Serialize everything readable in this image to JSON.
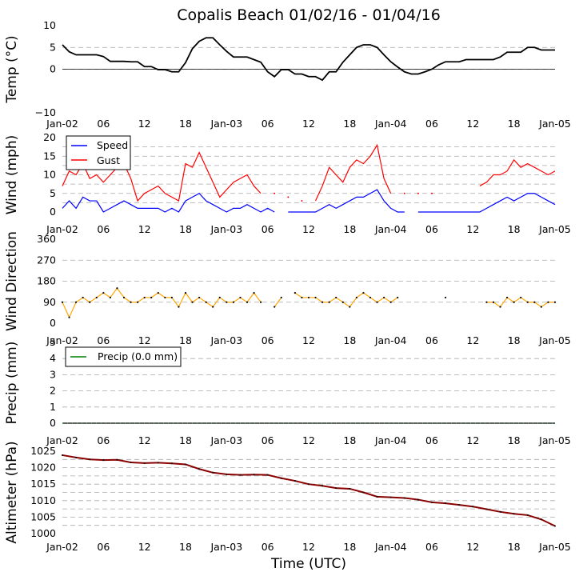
{
  "title": "Copalis Beach 01/02/16 - 01/04/16",
  "xlabel": "Time (UTC)",
  "x_tick_labels": [
    "Jan-02",
    "06",
    "12",
    "18",
    "Jan-03",
    "06",
    "12",
    "18",
    "Jan-04",
    "06",
    "12",
    "18",
    "Jan-05"
  ],
  "colors": {
    "temp": "#000000",
    "speed": "#0000ff",
    "gust": "#ff0000",
    "direction": "#ffa500",
    "precip": "#008000",
    "altimeter": "#8b0000"
  },
  "chart_data": [
    {
      "type": "line",
      "ylabel": "Temp (°C)",
      "ylim": [
        -10,
        10
      ],
      "yticks": [
        "10",
        "5",
        "0",
        "−10"
      ],
      "zero_line": true,
      "grid": "horizontal dashed",
      "x_hours": [
        0,
        1,
        2,
        3,
        4,
        5,
        6,
        7,
        8,
        9,
        10,
        11,
        12,
        13,
        14,
        15,
        16,
        17,
        18,
        19,
        20,
        21,
        22,
        23,
        24,
        25,
        26,
        27,
        28,
        29,
        30,
        31,
        32,
        33,
        34,
        35,
        36,
        37,
        38,
        39,
        40,
        41,
        42,
        43,
        44,
        45,
        46,
        47,
        48,
        49,
        50,
        51,
        52,
        53,
        54,
        55,
        56,
        57,
        58,
        59,
        60,
        61,
        62,
        63,
        64,
        65,
        66,
        67,
        68,
        69,
        70,
        71,
        72
      ],
      "series": [
        {
          "values": [
            5.6,
            4,
            3.3,
            3.3,
            3.3,
            3.3,
            2.9,
            1.8,
            1.8,
            1.8,
            1.7,
            1.7,
            0.6,
            0.6,
            -0.1,
            -0.1,
            -0.6,
            -0.6,
            1.5,
            4.7,
            6.4,
            7.2,
            7.2,
            5.6,
            4.1,
            2.8,
            2.8,
            2.8,
            2.2,
            1.6,
            -0.6,
            -1.7,
            -0.1,
            -0.1,
            -1.1,
            -1.1,
            -1.7,
            -1.7,
            -2.5,
            -0.6,
            -0.6,
            1.6,
            3.3,
            5,
            5.6,
            5.6,
            5,
            3.3,
            1.7,
            0.5,
            -0.6,
            -1.1,
            -1.1,
            -0.6,
            0,
            1,
            1.7,
            1.7,
            1.7,
            2.2,
            2.2,
            2.2,
            2.2,
            2.2,
            2.8,
            3.9,
            3.9,
            3.9,
            5,
            5,
            4.4,
            4.4,
            4.4
          ]
        }
      ]
    },
    {
      "type": "line",
      "ylabel": "Wind (mph)",
      "ylim": [
        0,
        20
      ],
      "yticks": [
        "20",
        "15",
        "10",
        "5",
        "0"
      ],
      "grid": "horizontal dashed",
      "legend": "upper-left",
      "x_hours": [
        0,
        1,
        2,
        3,
        4,
        5,
        6,
        7,
        8,
        9,
        10,
        11,
        12,
        13,
        14,
        15,
        16,
        17,
        18,
        19,
        20,
        21,
        22,
        23,
        24,
        25,
        26,
        27,
        28,
        29,
        30,
        31,
        32,
        33,
        34,
        35,
        36,
        37,
        38,
        39,
        40,
        41,
        42,
        43,
        44,
        45,
        46,
        47,
        48,
        49,
        50,
        51,
        52,
        53,
        54,
        55,
        56,
        57,
        58,
        59,
        60,
        61,
        62,
        63,
        64,
        65,
        66,
        67,
        68,
        69,
        70,
        71,
        72
      ],
      "series": [
        {
          "name": "Speed",
          "values": [
            1,
            3,
            1,
            4,
            3,
            3,
            0,
            1,
            2,
            3,
            2,
            1,
            1,
            1,
            1,
            0,
            1,
            0,
            3,
            4,
            5,
            3,
            2,
            1,
            0,
            1,
            1,
            2,
            1,
            0,
            1,
            0,
            null,
            0,
            0,
            0,
            0,
            0,
            1,
            2,
            1,
            2,
            3,
            4,
            4,
            5,
            6,
            3,
            1,
            0,
            0,
            null,
            0,
            0,
            0,
            0,
            0,
            0,
            0,
            0,
            0,
            0,
            1,
            2,
            3,
            4,
            3,
            4,
            5,
            5,
            4,
            3,
            2
          ]
        },
        {
          "name": "Gust",
          "values": [
            7,
            11,
            10,
            13,
            9,
            10,
            8,
            10,
            12,
            13,
            9,
            3,
            5,
            6,
            7,
            5,
            4,
            3,
            13,
            12,
            16,
            12,
            8,
            4,
            6,
            8,
            9,
            10,
            7,
            5,
            null,
            5,
            null,
            4,
            null,
            3,
            null,
            3,
            7,
            12,
            10,
            8,
            12,
            14,
            13,
            15,
            18,
            9,
            5,
            null,
            5,
            null,
            5,
            null,
            5,
            null,
            null,
            null,
            null,
            null,
            null,
            7,
            8,
            10,
            10,
            11,
            14,
            12,
            13,
            12,
            11,
            10,
            11
          ]
        }
      ]
    },
    {
      "type": "scatter",
      "ylabel": "Wind Direction",
      "ylim": [
        0,
        360
      ],
      "yticks": [
        "360",
        "270",
        "180",
        "90",
        "0"
      ],
      "grid": "horizontal dashed",
      "x_hours": [
        0,
        1,
        2,
        3,
        4,
        5,
        6,
        7,
        8,
        9,
        10,
        11,
        12,
        13,
        14,
        15,
        16,
        17,
        18,
        19,
        20,
        21,
        22,
        23,
        24,
        25,
        26,
        27,
        28,
        29,
        30,
        31,
        32,
        33,
        34,
        35,
        36,
        37,
        38,
        39,
        40,
        41,
        42,
        43,
        44,
        45,
        46,
        47,
        48,
        49,
        50,
        51,
        52,
        53,
        54,
        55,
        56,
        57,
        58,
        59,
        60,
        61,
        62,
        63,
        64,
        65,
        66,
        67,
        68,
        69,
        70,
        71,
        72
      ],
      "series": [
        {
          "values": [
            90,
            25,
            90,
            110,
            90,
            110,
            130,
            110,
            150,
            110,
            90,
            90,
            110,
            110,
            130,
            110,
            110,
            70,
            130,
            90,
            110,
            90,
            70,
            110,
            90,
            90,
            110,
            90,
            130,
            90,
            null,
            70,
            110,
            null,
            130,
            110,
            110,
            110,
            90,
            90,
            110,
            90,
            70,
            110,
            130,
            110,
            90,
            110,
            90,
            110,
            null,
            null,
            null,
            null,
            null,
            null,
            110,
            null,
            null,
            null,
            null,
            null,
            90,
            90,
            70,
            110,
            90,
            110,
            90,
            90,
            70,
            90,
            90
          ]
        }
      ]
    },
    {
      "type": "line",
      "ylabel": "Precip (mm)",
      "ylim": [
        0,
        5
      ],
      "yticks": [
        "5",
        "4",
        "3",
        "2",
        "1",
        "0"
      ],
      "grid": "horizontal dashed",
      "legend": "upper-left",
      "series": [
        {
          "name": "Precip (0.0 mm)",
          "constant_value": 0
        }
      ]
    },
    {
      "type": "line",
      "ylabel": "Altimeter (hPa)",
      "ylim": [
        1000,
        1025
      ],
      "yticks": [
        "1025",
        "1020",
        "1015",
        "1010",
        "1005",
        "1000"
      ],
      "grid": "horizontal dashed",
      "x_hours": [
        0,
        2,
        4,
        6,
        8,
        10,
        12,
        14,
        16,
        18,
        20,
        22,
        24,
        26,
        28,
        30,
        32,
        34,
        36,
        38,
        40,
        42,
        44,
        46,
        48,
        50,
        52,
        54,
        56,
        58,
        60,
        62,
        64,
        66,
        68,
        70,
        72
      ],
      "series": [
        {
          "values": [
            1023.8,
            1023.1,
            1022.5,
            1022.3,
            1022.4,
            1021.6,
            1021.4,
            1021.5,
            1021.3,
            1021,
            1019.6,
            1018.5,
            1018,
            1017.8,
            1017.9,
            1017.8,
            1016.8,
            1016,
            1015,
            1014.5,
            1013.8,
            1013.6,
            1012.5,
            1011.2,
            1011,
            1010.8,
            1010.3,
            1009.5,
            1009.2,
            1008.7,
            1008.2,
            1007.4,
            1006.6,
            1006,
            1005.6,
            1004.3,
            1002.3
          ]
        }
      ]
    }
  ]
}
